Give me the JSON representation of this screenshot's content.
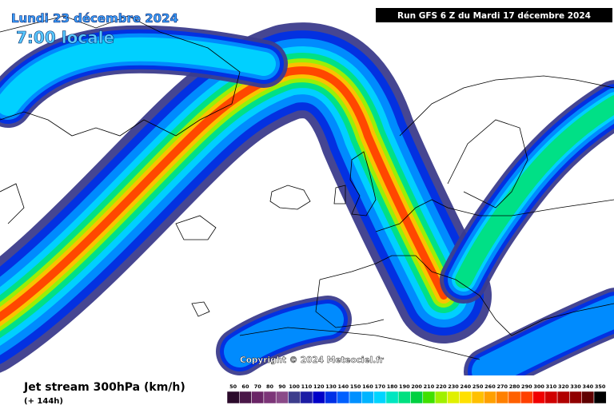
{
  "header": {
    "date": "Lundi 23 décembre 2024",
    "time": "7:00 locale",
    "run": "Run GFS 6 Z du Mardi 17 décembre 2024"
  },
  "copyright": "Copyright © 2024 Meteociel.fr",
  "footer": {
    "title": "Jet stream 300hPa (km/h)",
    "lead": "(+ 144h)"
  },
  "legend": {
    "items": [
      {
        "value": 50,
        "color": "#2b0a2b"
      },
      {
        "value": 60,
        "color": "#4a1748"
      },
      {
        "value": 70,
        "color": "#6a2566"
      },
      {
        "value": 80,
        "color": "#7c3578"
      },
      {
        "value": 90,
        "color": "#8a4a88"
      },
      {
        "value": 100,
        "color": "#3c3c8c"
      },
      {
        "value": 110,
        "color": "#1c1ca4"
      },
      {
        "value": 120,
        "color": "#0000c8"
      },
      {
        "value": 130,
        "color": "#0030e6"
      },
      {
        "value": 140,
        "color": "#0060ff"
      },
      {
        "value": 150,
        "color": "#0090ff"
      },
      {
        "value": 160,
        "color": "#00b4ff"
      },
      {
        "value": 170,
        "color": "#00d4ff"
      },
      {
        "value": 180,
        "color": "#00e6c0"
      },
      {
        "value": 190,
        "color": "#00e080"
      },
      {
        "value": 200,
        "color": "#00d040"
      },
      {
        "value": 210,
        "color": "#40e000"
      },
      {
        "value": 220,
        "color": "#a0f000"
      },
      {
        "value": 230,
        "color": "#e0f000"
      },
      {
        "value": 240,
        "color": "#ffe000"
      },
      {
        "value": 250,
        "color": "#ffc000"
      },
      {
        "value": 260,
        "color": "#ffa000"
      },
      {
        "value": 270,
        "color": "#ff8000"
      },
      {
        "value": 280,
        "color": "#ff6000"
      },
      {
        "value": 290,
        "color": "#ff4000"
      },
      {
        "value": 300,
        "color": "#f00000"
      },
      {
        "value": 310,
        "color": "#d00000"
      },
      {
        "value": 320,
        "color": "#b00000"
      },
      {
        "value": 330,
        "color": "#900000"
      },
      {
        "value": 340,
        "color": "#600000"
      },
      {
        "value": 350,
        "color": "#000000"
      }
    ]
  }
}
